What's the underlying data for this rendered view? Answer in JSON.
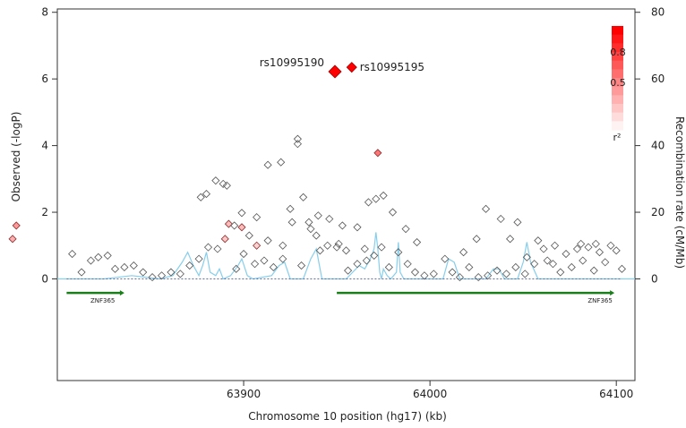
{
  "chart_data": {
    "type": "scatter",
    "title": "",
    "xlabel": "Chromosome 10 position (hg17) (kb)",
    "ylabel": "Observed (-logP)",
    "y2label": "Recombination rate (cM/Mb)",
    "xlim": [
      63800,
      64110
    ],
    "ylim": [
      -3.05,
      8.1
    ],
    "y2lim": [
      -30.5,
      81
    ],
    "xticks": [
      63900,
      64000,
      64100
    ],
    "yticks": [
      0,
      2,
      4,
      6,
      8
    ],
    "y2ticks": [
      0,
      20,
      40,
      60,
      80
    ],
    "grid": false,
    "legend": {
      "title": "r²",
      "ticks": [
        "0.8",
        "0.5"
      ],
      "placement": "top-right",
      "colors": [
        "#ff0000",
        "#fde8e8"
      ]
    },
    "annotations": [
      {
        "text": "rs10995190",
        "x": 63949,
        "y": 6.22
      },
      {
        "text": "rs10995195",
        "x": 63958,
        "y": 6.35
      }
    ],
    "genes": [
      {
        "name": "ZNF365",
        "start": 63805,
        "end": 63836,
        "y": -0.42
      },
      {
        "name": "ZNF365",
        "start": 63950,
        "end": 64099,
        "y": -0.42
      }
    ],
    "colors": {
      "accent": "#ff0000",
      "recombination": "#87ceeb",
      "gene": "#1a7f1a",
      "baseline": "#6070a0"
    },
    "series": [
      {
        "name": "SNPs",
        "points": [
          [
            63949,
            6.22,
            1.0
          ],
          [
            63958,
            6.35,
            0.95
          ],
          [
            63972,
            3.78,
            0.6
          ],
          [
            63778,
            1.6,
            0.45
          ],
          [
            63892,
            1.65,
            0.3
          ],
          [
            63899,
            1.55,
            0.3
          ],
          [
            63776,
            1.2,
            0.35
          ],
          [
            63890,
            1.2,
            0.25
          ],
          [
            63907,
            1.0,
            0.2
          ],
          [
            63929,
            4.2,
            0
          ],
          [
            63929,
            4.05,
            0
          ],
          [
            63913,
            3.42,
            0
          ],
          [
            63920,
            3.5,
            0
          ],
          [
            63932,
            2.45,
            0
          ],
          [
            63925,
            2.1,
            0
          ],
          [
            63940,
            1.9,
            0
          ],
          [
            63946,
            1.8,
            0
          ],
          [
            63935,
            1.7,
            0
          ],
          [
            63926,
            1.7,
            0
          ],
          [
            63953,
            1.6,
            0
          ],
          [
            63961,
            1.55,
            0
          ],
          [
            63967,
            2.3,
            0
          ],
          [
            63971,
            2.4,
            0
          ],
          [
            63975,
            2.5,
            0
          ],
          [
            63980,
            2.0,
            0
          ],
          [
            63885,
            2.95,
            0
          ],
          [
            63889,
            2.85,
            0
          ],
          [
            63891,
            2.8,
            0
          ],
          [
            63880,
            2.55,
            0
          ],
          [
            63877,
            2.45,
            0
          ],
          [
            63899,
            1.98,
            0
          ],
          [
            63907,
            1.85,
            0
          ],
          [
            63895,
            1.6,
            0
          ],
          [
            63903,
            1.3,
            0
          ],
          [
            63913,
            1.15,
            0
          ],
          [
            63921,
            1.0,
            0
          ],
          [
            63939,
            1.3,
            0
          ],
          [
            63945,
            1.0,
            0
          ],
          [
            63950,
            0.95,
            0
          ],
          [
            63955,
            0.85,
            0
          ],
          [
            63965,
            0.9,
            0
          ],
          [
            63987,
            1.5,
            0
          ],
          [
            63993,
            1.1,
            0
          ],
          [
            64008,
            0.6,
            0
          ],
          [
            64018,
            0.8,
            0
          ],
          [
            64025,
            1.2,
            0
          ],
          [
            64030,
            2.1,
            0
          ],
          [
            64038,
            1.8,
            0
          ],
          [
            64043,
            1.2,
            0
          ],
          [
            64047,
            1.7,
            0
          ],
          [
            64058,
            1.15,
            0
          ],
          [
            64052,
            0.65,
            0
          ],
          [
            63808,
            0.75,
            0
          ],
          [
            63813,
            0.2,
            0
          ],
          [
            63818,
            0.55,
            0
          ],
          [
            63822,
            0.65,
            0
          ],
          [
            63827,
            0.7,
            0
          ],
          [
            63831,
            0.3,
            0
          ],
          [
            63836,
            0.35,
            0
          ],
          [
            63841,
            0.4,
            0
          ],
          [
            63846,
            0.2,
            0
          ],
          [
            63851,
            0.05,
            0
          ],
          [
            63856,
            0.1,
            0
          ],
          [
            63861,
            0.2,
            0
          ],
          [
            63866,
            0.15,
            0
          ],
          [
            63871,
            0.4,
            0
          ],
          [
            63876,
            0.6,
            0
          ],
          [
            63881,
            0.95,
            0
          ],
          [
            63886,
            0.9,
            0
          ],
          [
            63896,
            0.3,
            0
          ],
          [
            63900,
            0.75,
            0
          ],
          [
            63906,
            0.45,
            0
          ],
          [
            63911,
            0.55,
            0
          ],
          [
            63916,
            0.35,
            0
          ],
          [
            63921,
            0.6,
            0
          ],
          [
            63931,
            0.4,
            0
          ],
          [
            63936,
            1.5,
            0
          ],
          [
            63941,
            0.85,
            0
          ],
          [
            63951,
            1.05,
            0
          ],
          [
            63956,
            0.25,
            0
          ],
          [
            63961,
            0.45,
            0
          ],
          [
            63966,
            0.55,
            0
          ],
          [
            63970,
            0.7,
            0
          ],
          [
            63974,
            0.95,
            0
          ],
          [
            63978,
            0.35,
            0
          ],
          [
            63983,
            0.8,
            0
          ],
          [
            63988,
            0.45,
            0
          ],
          [
            63992,
            0.2,
            0
          ],
          [
            63997,
            0.1,
            0
          ],
          [
            64002,
            0.15,
            0
          ],
          [
            64012,
            0.2,
            0
          ],
          [
            64016,
            0.05,
            0
          ],
          [
            64021,
            0.35,
            0
          ],
          [
            64026,
            0.05,
            0
          ],
          [
            64031,
            0.1,
            0
          ],
          [
            64036,
            0.25,
            0
          ],
          [
            64041,
            0.15,
            0
          ],
          [
            64046,
            0.35,
            0
          ],
          [
            64051,
            0.15,
            0
          ],
          [
            64056,
            0.45,
            0
          ],
          [
            64061,
            0.9,
            0
          ],
          [
            64063,
            0.55,
            0
          ],
          [
            64066,
            0.45,
            0
          ],
          [
            64070,
            0.2,
            0
          ],
          [
            64073,
            0.75,
            0
          ],
          [
            64076,
            0.35,
            0
          ],
          [
            64079,
            0.9,
            0
          ],
          [
            64082,
            0.55,
            0
          ],
          [
            64085,
            0.95,
            0
          ],
          [
            64088,
            0.25,
            0
          ],
          [
            64091,
            0.8,
            0
          ],
          [
            64094,
            0.5,
            0
          ],
          [
            64097,
            1.0,
            0
          ],
          [
            64100,
            0.85,
            0
          ],
          [
            64103,
            0.3,
            0
          ],
          [
            64081,
            1.05,
            0
          ],
          [
            64089,
            1.05,
            0
          ],
          [
            64067,
            1.0,
            0
          ]
        ]
      },
      {
        "name": "Recombination rate",
        "axis": "right",
        "x": [
          63800,
          63825,
          63840,
          63855,
          63862,
          63867,
          63870,
          63873,
          63876,
          63878,
          63880,
          63882,
          63885,
          63887,
          63889,
          63893,
          63897,
          63899,
          63902,
          63905,
          63915,
          63919,
          63922,
          63925,
          63932,
          63936,
          63939,
          63942,
          63955,
          63962,
          63965,
          63968,
          63970,
          63971,
          63972,
          63973,
          63974,
          63975,
          63977,
          63979,
          63982,
          63983,
          63984,
          63986,
          64000,
          64007,
          64010,
          64013,
          64016,
          64030,
          64034,
          64037,
          64040,
          64047,
          64050,
          64052,
          64054,
          64058,
          64070,
          64110
        ],
        "y": [
          0,
          0,
          1,
          0,
          1,
          5,
          8,
          4,
          1,
          4,
          8,
          2,
          1,
          3,
          0,
          1,
          4,
          6,
          1,
          0,
          1,
          4,
          5,
          0,
          0,
          6,
          9,
          0,
          0,
          4,
          3,
          6,
          9,
          14,
          9,
          2,
          0,
          3,
          1,
          0,
          2,
          11,
          2,
          0,
          0,
          0,
          6,
          5,
          0,
          0,
          3,
          3,
          0,
          0,
          5,
          11,
          5,
          0,
          0,
          0
        ]
      }
    ]
  }
}
